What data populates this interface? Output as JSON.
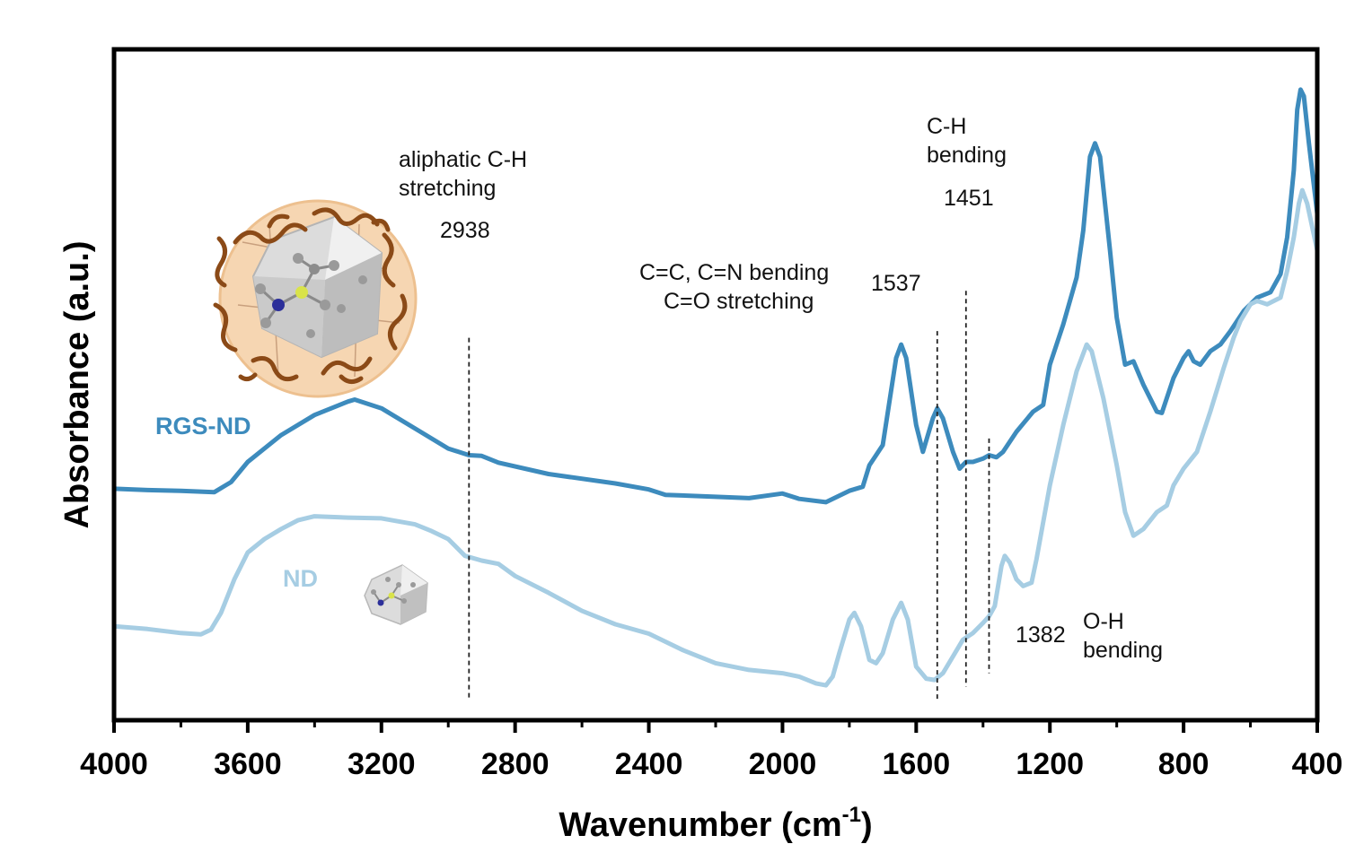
{
  "chart_data": {
    "type": "line",
    "xlabel": "Wavenumber (cm",
    "xlabel_sup": "-1",
    "xlabel_close": ")",
    "ylabel": "Absorbance (a.u.)",
    "xlim": [
      4000,
      400
    ],
    "x_reversed": true,
    "ylim": [
      0,
      100
    ],
    "xticks": [
      4000,
      3600,
      3200,
      2800,
      2400,
      2000,
      1600,
      1200,
      800,
      400
    ],
    "y_ticks_shown": false,
    "grid": false,
    "legend": "inline labels",
    "series": [
      {
        "name": "RGS-ND",
        "color": "#3d8bbd",
        "points": [
          [
            4000,
            34.5
          ],
          [
            3900,
            34.3
          ],
          [
            3800,
            34.2
          ],
          [
            3700,
            34.0
          ],
          [
            3650,
            35.5
          ],
          [
            3600,
            38.5
          ],
          [
            3500,
            42.5
          ],
          [
            3400,
            45.5
          ],
          [
            3300,
            47.5
          ],
          [
            3280,
            47.8
          ],
          [
            3200,
            46.5
          ],
          [
            3100,
            43.5
          ],
          [
            3000,
            40.5
          ],
          [
            2938,
            39.5
          ],
          [
            2900,
            39.4
          ],
          [
            2850,
            38.4
          ],
          [
            2700,
            36.7
          ],
          [
            2500,
            35.3
          ],
          [
            2400,
            34.4
          ],
          [
            2350,
            33.6
          ],
          [
            2200,
            33.3
          ],
          [
            2100,
            33.1
          ],
          [
            2000,
            33.8
          ],
          [
            1950,
            33.0
          ],
          [
            1870,
            32.5
          ],
          [
            1800,
            34.2
          ],
          [
            1760,
            34.8
          ],
          [
            1740,
            38.0
          ],
          [
            1700,
            41.0
          ],
          [
            1660,
            54.0
          ],
          [
            1645,
            56.0
          ],
          [
            1630,
            54.0
          ],
          [
            1600,
            44.0
          ],
          [
            1580,
            40.0
          ],
          [
            1550,
            45.0
          ],
          [
            1537,
            46.5
          ],
          [
            1520,
            45.0
          ],
          [
            1490,
            40.0
          ],
          [
            1470,
            37.5
          ],
          [
            1451,
            38.5
          ],
          [
            1430,
            38.5
          ],
          [
            1400,
            39.0
          ],
          [
            1382,
            39.5
          ],
          [
            1360,
            39.2
          ],
          [
            1340,
            40.0
          ],
          [
            1300,
            43.0
          ],
          [
            1250,
            46.0
          ],
          [
            1220,
            47.0
          ],
          [
            1200,
            53.0
          ],
          [
            1160,
            59.0
          ],
          [
            1120,
            66.0
          ],
          [
            1100,
            73.0
          ],
          [
            1080,
            84.0
          ],
          [
            1065,
            86.0
          ],
          [
            1050,
            84.0
          ],
          [
            1020,
            70.0
          ],
          [
            1000,
            60.0
          ],
          [
            975,
            53.0
          ],
          [
            950,
            53.5
          ],
          [
            920,
            50.0
          ],
          [
            880,
            46.0
          ],
          [
            865,
            45.8
          ],
          [
            830,
            51.0
          ],
          [
            800,
            54.0
          ],
          [
            785,
            55.0
          ],
          [
            770,
            53.5
          ],
          [
            750,
            53.0
          ],
          [
            720,
            55.0
          ],
          [
            690,
            56.0
          ],
          [
            660,
            58.0
          ],
          [
            620,
            61.0
          ],
          [
            580,
            63.0
          ],
          [
            540,
            63.8
          ],
          [
            510,
            66.5
          ],
          [
            490,
            72.0
          ],
          [
            470,
            82.0
          ],
          [
            460,
            91.0
          ],
          [
            450,
            94.0
          ],
          [
            440,
            93.0
          ],
          [
            425,
            86.0
          ],
          [
            400,
            75.5
          ]
        ]
      },
      {
        "name": "ND",
        "color": "#a6cde3",
        "points": [
          [
            4000,
            14.0
          ],
          [
            3900,
            13.6
          ],
          [
            3800,
            13.0
          ],
          [
            3740,
            12.8
          ],
          [
            3710,
            13.5
          ],
          [
            3680,
            16.0
          ],
          [
            3640,
            21.0
          ],
          [
            3600,
            25.0
          ],
          [
            3550,
            27.0
          ],
          [
            3500,
            28.5
          ],
          [
            3450,
            29.8
          ],
          [
            3400,
            30.4
          ],
          [
            3300,
            30.2
          ],
          [
            3200,
            30.1
          ],
          [
            3100,
            29.2
          ],
          [
            3050,
            28.2
          ],
          [
            3000,
            27.0
          ],
          [
            2950,
            24.5
          ],
          [
            2900,
            23.8
          ],
          [
            2850,
            23.3
          ],
          [
            2800,
            21.5
          ],
          [
            2700,
            19.0
          ],
          [
            2600,
            16.3
          ],
          [
            2500,
            14.3
          ],
          [
            2400,
            12.9
          ],
          [
            2300,
            10.5
          ],
          [
            2200,
            8.5
          ],
          [
            2100,
            7.5
          ],
          [
            2000,
            7.0
          ],
          [
            1950,
            6.5
          ],
          [
            1900,
            5.5
          ],
          [
            1870,
            5.2
          ],
          [
            1850,
            6.5
          ],
          [
            1830,
            10.0
          ],
          [
            1800,
            15.0
          ],
          [
            1785,
            16.0
          ],
          [
            1765,
            14.0
          ],
          [
            1740,
            9.0
          ],
          [
            1720,
            8.5
          ],
          [
            1700,
            10.0
          ],
          [
            1670,
            15.0
          ],
          [
            1645,
            17.5
          ],
          [
            1625,
            15.0
          ],
          [
            1600,
            8.0
          ],
          [
            1570,
            6.2
          ],
          [
            1545,
            6.0
          ],
          [
            1520,
            7.0
          ],
          [
            1490,
            9.5
          ],
          [
            1460,
            12.0
          ],
          [
            1430,
            13.0
          ],
          [
            1400,
            14.5
          ],
          [
            1382,
            15.5
          ],
          [
            1365,
            17.0
          ],
          [
            1345,
            23.0
          ],
          [
            1335,
            24.5
          ],
          [
            1320,
            23.5
          ],
          [
            1300,
            21.0
          ],
          [
            1280,
            20.0
          ],
          [
            1255,
            20.5
          ],
          [
            1240,
            24.0
          ],
          [
            1200,
            35.0
          ],
          [
            1160,
            44.0
          ],
          [
            1120,
            52.0
          ],
          [
            1090,
            56.0
          ],
          [
            1075,
            55.0
          ],
          [
            1040,
            48.0
          ],
          [
            1000,
            38.0
          ],
          [
            975,
            31.0
          ],
          [
            950,
            27.5
          ],
          [
            920,
            28.5
          ],
          [
            880,
            31.0
          ],
          [
            850,
            32.0
          ],
          [
            830,
            35.0
          ],
          [
            800,
            37.5
          ],
          [
            760,
            40.0
          ],
          [
            720,
            46.0
          ],
          [
            680,
            52.5
          ],
          [
            650,
            57.0
          ],
          [
            630,
            59.5
          ],
          [
            600,
            62.0
          ],
          [
            580,
            62.5
          ],
          [
            550,
            62.0
          ],
          [
            510,
            63.0
          ],
          [
            490,
            67.0
          ],
          [
            470,
            72.0
          ],
          [
            455,
            77.0
          ],
          [
            445,
            79.0
          ],
          [
            430,
            77.0
          ],
          [
            400,
            70.0
          ]
        ]
      }
    ],
    "annotations": {
      "peak_2938": {
        "line_x": 2938,
        "y_top": 57.0,
        "y_bottom": 3.0,
        "value": "2938",
        "label_lines": [
          "aliphatic C-H",
          "stretching"
        ]
      },
      "peak_1537": {
        "line_x": 1537,
        "y_top": 58.0,
        "y_bottom": 3.0,
        "value": "1537",
        "label_lines": [
          "C=C, C=N bending",
          "C=O stretching"
        ]
      },
      "peak_1451": {
        "line_x": 1451,
        "y_top": 64.0,
        "y_bottom": 5.0,
        "value": "1451",
        "label_lines": [
          "C-H",
          "bending"
        ]
      },
      "peak_1382": {
        "line_x": 1382,
        "y_top": 42.0,
        "y_bottom": 7.0,
        "value": "1382",
        "label_lines": [
          "O-H",
          "bending"
        ]
      }
    }
  }
}
